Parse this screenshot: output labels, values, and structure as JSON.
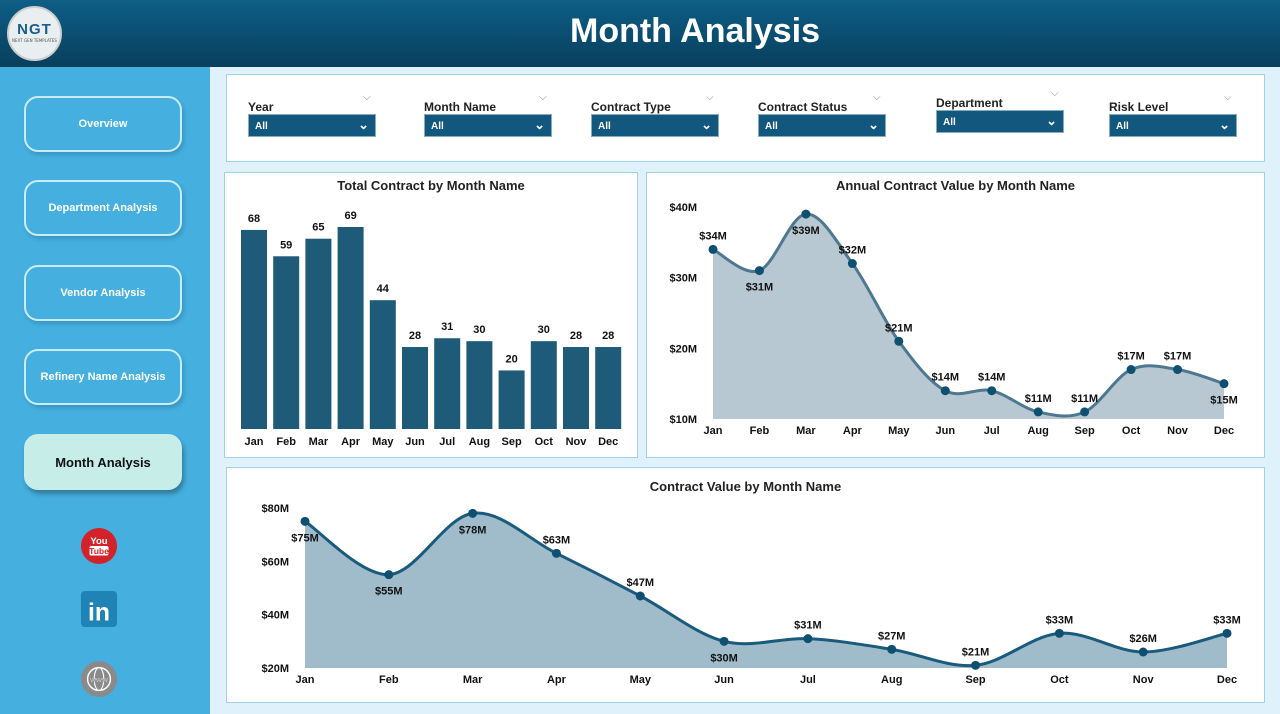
{
  "header": {
    "title": "Month Analysis",
    "logo_text": "NGT",
    "logo_sub": "NEXT GEN TEMPLATES"
  },
  "sidebar": {
    "items": [
      {
        "label": "Overview",
        "active": false
      },
      {
        "label": "Department Analysis",
        "active": false
      },
      {
        "label": "Vendor Analysis",
        "active": false
      },
      {
        "label": "Refinery Name Analysis",
        "active": false
      },
      {
        "label": "Month Analysis",
        "active": true
      }
    ],
    "social": [
      "youtube-icon",
      "linkedin-icon",
      "website-icon"
    ]
  },
  "filters": [
    {
      "label": "Year",
      "value": "All"
    },
    {
      "label": "Month Name",
      "value": "All"
    },
    {
      "label": "Contract Type",
      "value": "All"
    },
    {
      "label": "Contract Status",
      "value": "All"
    },
    {
      "label": "Department",
      "value": "All"
    },
    {
      "label": "Risk Level",
      "value": "All"
    }
  ],
  "colors": {
    "bar": "#1e5b78",
    "line1": "#4d7890",
    "area1": "#b7c8d2",
    "line2": "#1a5a7d",
    "area2": "#a0bccb"
  },
  "chart_data": [
    {
      "type": "bar",
      "title": "Total Contract by Month Name",
      "categories": [
        "Jan",
        "Feb",
        "Mar",
        "Apr",
        "May",
        "Jun",
        "Jul",
        "Aug",
        "Sep",
        "Oct",
        "Nov",
        "Dec"
      ],
      "values": [
        68,
        59,
        65,
        69,
        44,
        28,
        31,
        30,
        20,
        30,
        28,
        28
      ],
      "data_labels": [
        "68",
        "59",
        "65",
        "69",
        "44",
        "28",
        "31",
        "30",
        "20",
        "30",
        "28",
        "28"
      ]
    },
    {
      "type": "area",
      "title": "Annual Contract Value by Month Name",
      "categories": [
        "Jan",
        "Feb",
        "Mar",
        "Apr",
        "May",
        "Jun",
        "Jul",
        "Aug",
        "Sep",
        "Oct",
        "Nov",
        "Dec"
      ],
      "values": [
        34,
        31,
        39,
        32,
        21,
        14,
        14,
        11,
        11,
        17,
        17,
        15
      ],
      "unit": "M",
      "ylim": [
        10,
        40
      ],
      "yticks": [
        "$10M",
        "$20M",
        "$30M",
        "$40M"
      ],
      "data_labels": [
        "$34M",
        "$31M",
        "$39M",
        "$32M",
        "$21M",
        "$14M",
        "$14M",
        "$11M",
        "$11M",
        "$17M",
        "$17M",
        "$15M"
      ]
    },
    {
      "type": "area",
      "title": "Contract Value by Month Name",
      "categories": [
        "Jan",
        "Feb",
        "Mar",
        "Apr",
        "May",
        "Jun",
        "Jul",
        "Aug",
        "Sep",
        "Oct",
        "Nov",
        "Dec"
      ],
      "values": [
        75,
        55,
        78,
        63,
        47,
        30,
        31,
        27,
        21,
        33,
        26,
        33
      ],
      "unit": "M",
      "ylim": [
        20,
        80
      ],
      "yticks": [
        "$20M",
        "$40M",
        "$60M",
        "$80M"
      ],
      "data_labels": [
        "$75M",
        "$55M",
        "$78M",
        "$63M",
        "$47M",
        "$30M",
        "$31M",
        "$27M",
        "$21M",
        "$33M",
        "$26M",
        "$33M"
      ]
    }
  ]
}
